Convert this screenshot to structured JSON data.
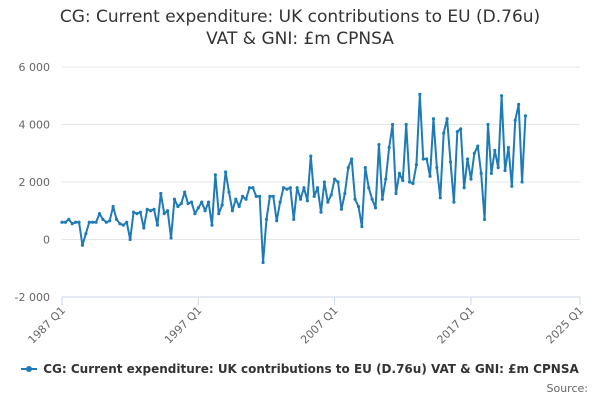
{
  "chart_data": {
    "type": "line",
    "title_line1": "CG: Current expenditure: UK contributions to EU (D.76u)",
    "title_line2": "VAT & GNI: £m CPNSA",
    "legend_label": "CG: Current expenditure: UK contributions to EU (D.76u) VAT & GNI: £m CPNSA",
    "source_label": "Source:",
    "ylim": [
      -2000,
      6000
    ],
    "y_ticks": [
      -2000,
      0,
      2000,
      4000,
      6000
    ],
    "y_tick_labels": [
      "-2 000",
      "0",
      "2 000",
      "4 000",
      "6 000"
    ],
    "x_ticks": [
      "1987 Q1",
      "1997 Q1",
      "2007 Q1",
      "2017 Q1",
      "2025 Q1"
    ],
    "x_start": "1987 Q1",
    "x_end": "2025 Q1",
    "grid": "horizontal",
    "legend_position": "bottom",
    "color": "#1f7bb6",
    "series": [
      {
        "name": "CG: Current expenditure: UK contributions to EU (D.76u) VAT & GNI: £m CPNSA",
        "start": "1987 Q1",
        "values": [
          600,
          600,
          700,
          550,
          600,
          600,
          -200,
          200,
          600,
          600,
          600,
          900,
          700,
          600,
          650,
          1150,
          700,
          550,
          500,
          600,
          0,
          950,
          900,
          950,
          400,
          1050,
          1000,
          1050,
          500,
          1600,
          900,
          1000,
          50,
          1400,
          1150,
          1250,
          1650,
          1250,
          1300,
          900,
          1100,
          1300,
          1000,
          1300,
          500,
          2250,
          900,
          1200,
          2350,
          1650,
          1000,
          1400,
          1150,
          1500,
          1400,
          1800,
          1800,
          1500,
          1500,
          -800,
          700,
          1500,
          1500,
          650,
          1300,
          1800,
          1750,
          1800,
          700,
          1800,
          1400,
          1800,
          1350,
          2900,
          1500,
          1800,
          950,
          2000,
          1300,
          1550,
          2100,
          2000,
          1050,
          1600,
          2500,
          2800,
          1400,
          1150,
          450,
          2500,
          1800,
          1400,
          1100,
          3300,
          1400,
          2100,
          3200,
          4000,
          1600,
          2300,
          2050,
          4000,
          2000,
          1950,
          2600,
          5050,
          2800,
          2800,
          2200,
          4200,
          2500,
          1450,
          3700,
          4200,
          2700,
          1300,
          3750,
          3850,
          1800,
          2800,
          2100,
          3000,
          3250,
          2300,
          700,
          4000,
          2300,
          3100,
          2500,
          5000,
          2400,
          3200,
          1850,
          4150,
          4700,
          2000,
          4300
        ]
      }
    ]
  }
}
